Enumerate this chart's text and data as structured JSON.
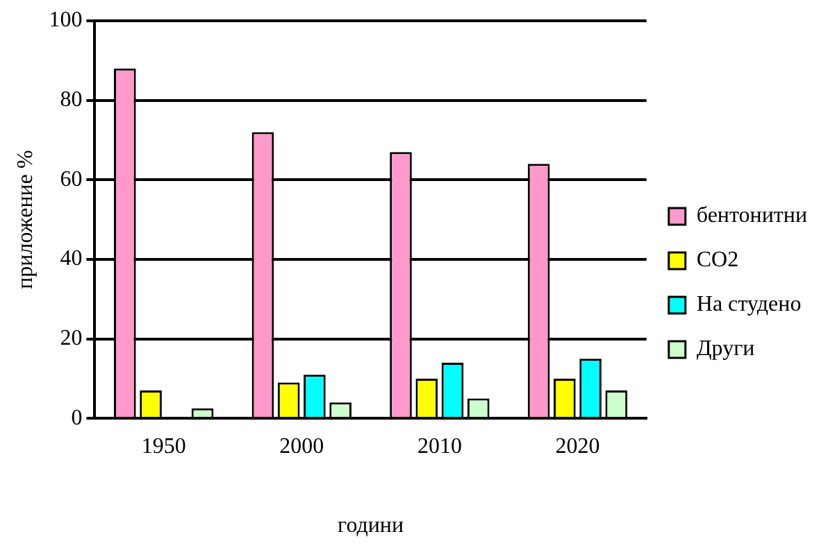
{
  "chart_data": {
    "type": "bar",
    "xlabel": "години",
    "ylabel": "приложение %",
    "categories": [
      "1950",
      "2000",
      "2010",
      "2020"
    ],
    "series": [
      {
        "name": "бентонитни",
        "color": "#ff99cc",
        "values": [
          88,
          72,
          67,
          64
        ]
      },
      {
        "name": "CO2",
        "color": "#ffff00",
        "values": [
          7,
          9,
          10,
          10
        ]
      },
      {
        "name": "На студено",
        "color": "#00ffff",
        "values": [
          0,
          11,
          14,
          15
        ]
      },
      {
        "name": "Други",
        "color": "#ccffcc",
        "values": [
          2.5,
          4,
          5,
          7
        ]
      }
    ],
    "ylim": [
      0,
      100
    ],
    "yticks": [
      0,
      20,
      40,
      60,
      80,
      100
    ],
    "grid": "y",
    "legend": "right"
  }
}
